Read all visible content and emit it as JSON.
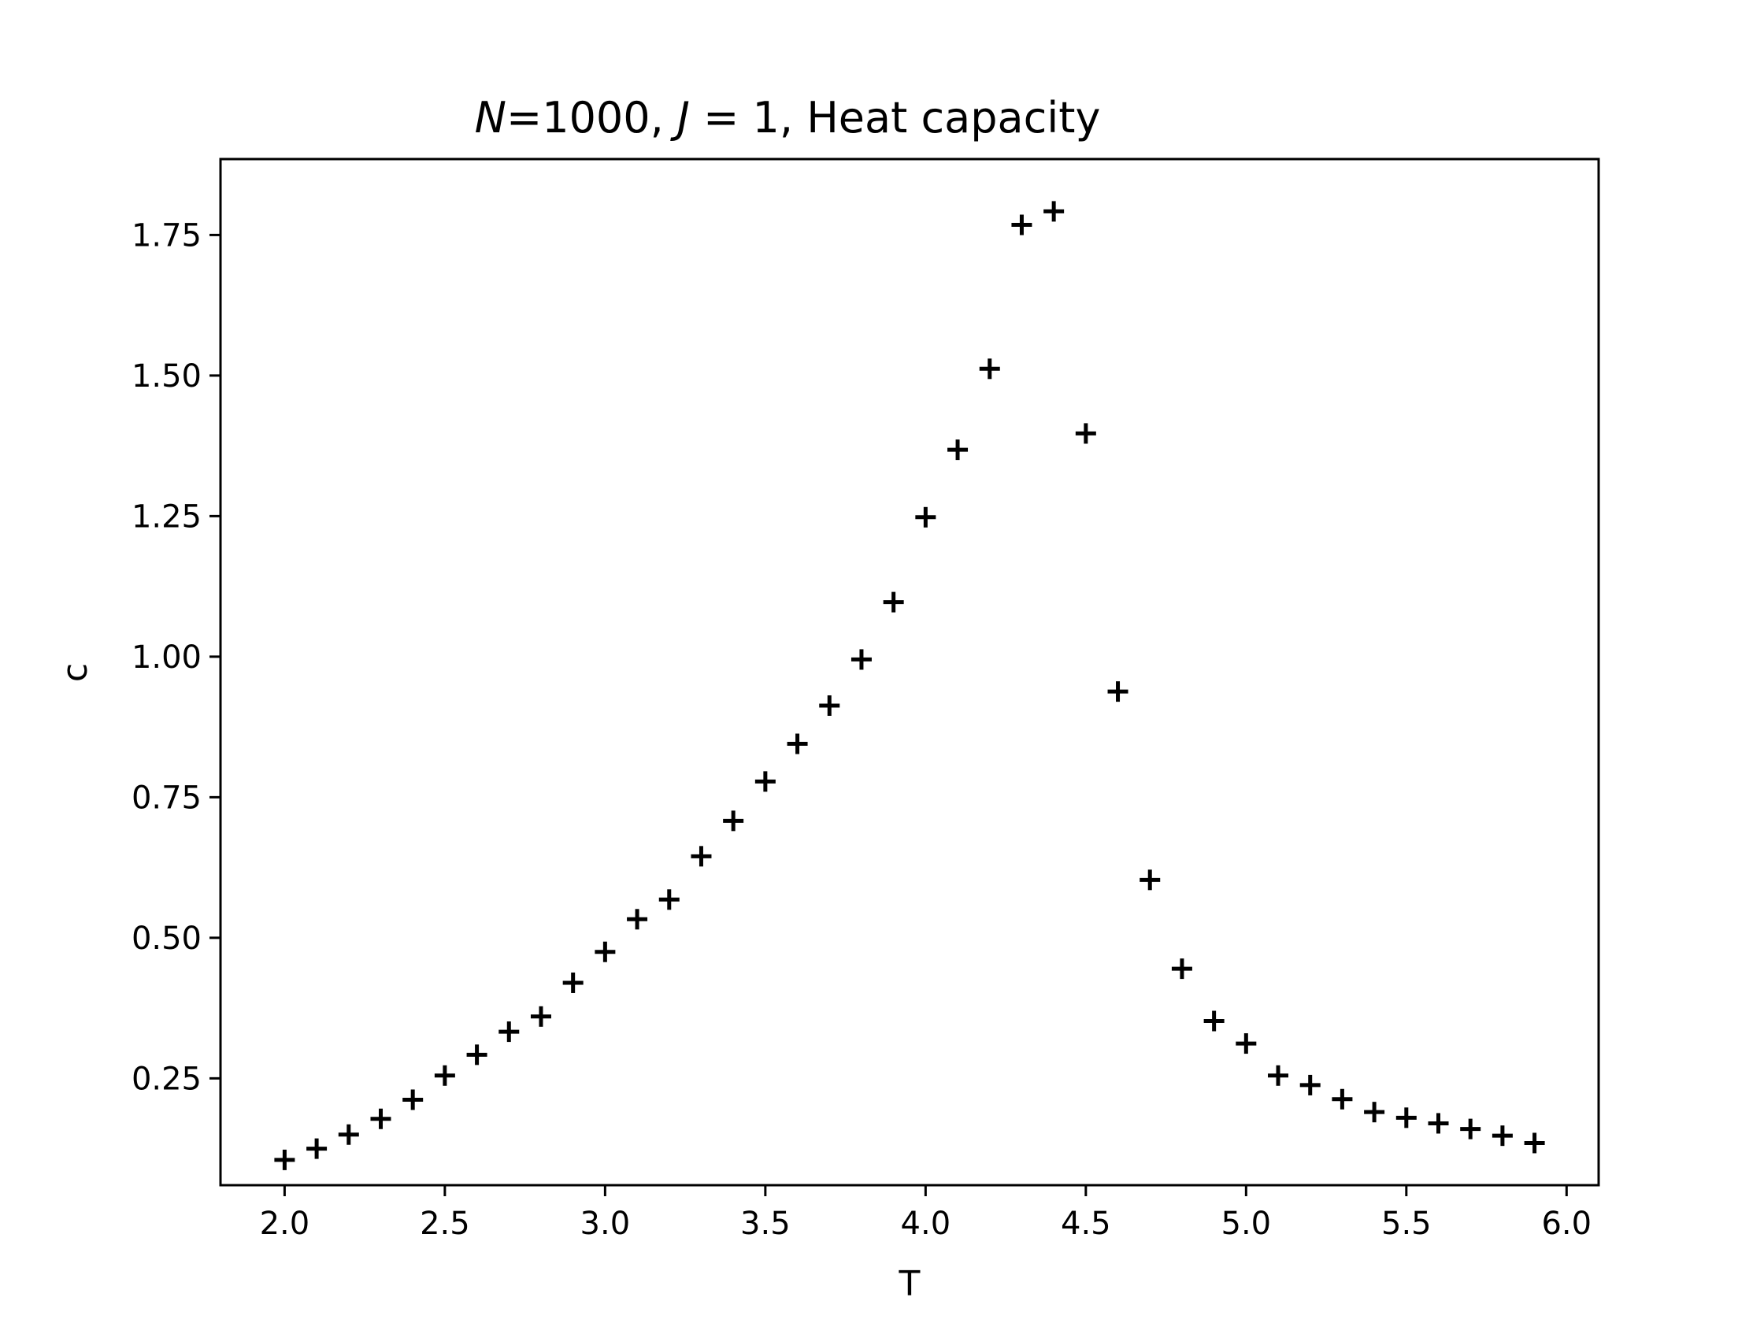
{
  "chart_data": {
    "type": "scatter",
    "title": {
      "n_symbol": "N",
      "n_part": "=1000, ",
      "j_symbol": "J",
      "j_part": " = 1",
      "tail": ", Heat capacity"
    },
    "xlabel": "T",
    "ylabel": "c",
    "xlim": [
      1.8,
      6.1
    ],
    "ylim": [
      0.06,
      1.885
    ],
    "xticks": [
      "2.0",
      "2.5",
      "3.0",
      "3.5",
      "4.0",
      "4.5",
      "5.0",
      "5.5",
      "6.0"
    ],
    "yticks": [
      "0.25",
      "0.50",
      "0.75",
      "1.00",
      "1.25",
      "1.50",
      "1.75"
    ],
    "grid": false,
    "marker": "plus",
    "marker_color": "#000000",
    "series": [
      {
        "x": [
          2.0,
          2.1,
          2.2,
          2.3,
          2.4,
          2.5,
          2.6,
          2.7,
          2.8,
          2.9,
          3.0,
          3.1,
          3.2,
          3.3,
          3.4,
          3.5,
          3.6,
          3.7,
          3.8,
          3.9,
          4.0,
          4.1,
          4.2,
          4.3,
          4.4,
          4.5,
          4.6,
          4.7,
          4.8,
          4.9,
          5.0,
          5.1,
          5.2,
          5.3,
          5.4,
          5.5,
          5.6,
          5.7,
          5.8,
          5.9
        ],
        "y": [
          0.105,
          0.125,
          0.15,
          0.178,
          0.212,
          0.255,
          0.292,
          0.333,
          0.36,
          0.42,
          0.475,
          0.533,
          0.568,
          0.645,
          0.708,
          0.778,
          0.845,
          0.913,
          0.995,
          1.097,
          1.248,
          1.368,
          1.512,
          1.768,
          1.792,
          1.397,
          0.938,
          0.603,
          0.445,
          0.352,
          0.312,
          0.255,
          0.238,
          0.213,
          0.19,
          0.18,
          0.17,
          0.16,
          0.148,
          0.135
        ]
      }
    ]
  }
}
